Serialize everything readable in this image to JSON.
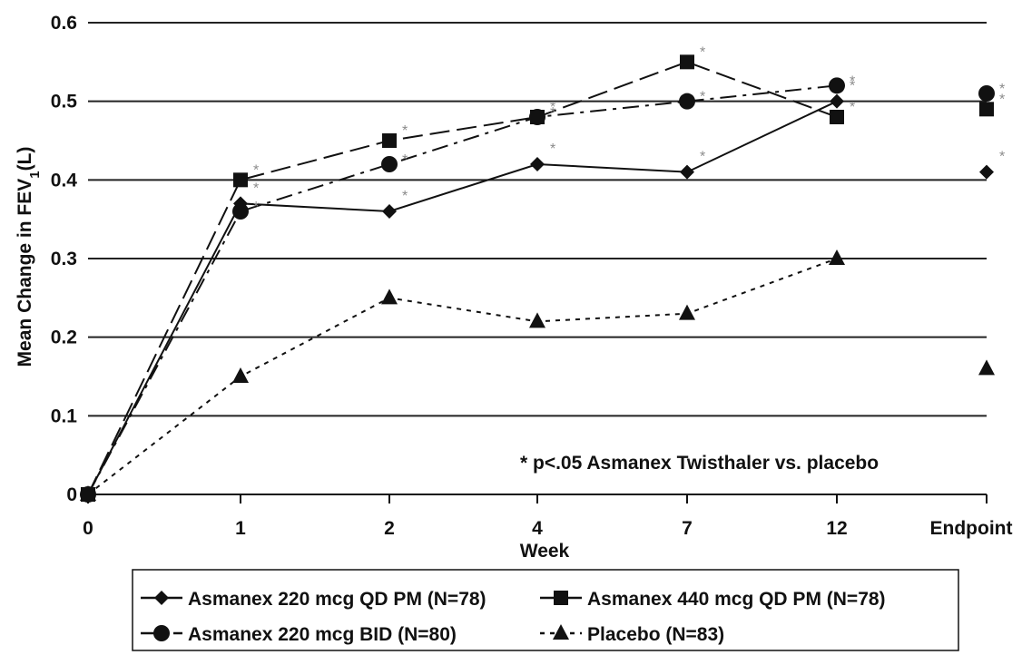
{
  "chart_data": {
    "type": "line",
    "categories": [
      "0",
      "1",
      "2",
      "4",
      "7",
      "12",
      "Endpoint"
    ],
    "xlabel": "Week",
    "ylabel_prefix": "Mean Change in FEV",
    "ylabel_sub": "1",
    "ylabel_suffix": "(L)",
    "ylim": [
      0,
      0.6
    ],
    "yticks": [
      "0",
      "0.1",
      "0.2",
      "0.3",
      "0.4",
      "0.5",
      "0.6"
    ],
    "grid": true,
    "legend_position": "bottom",
    "annotation": "* p<.05 Asmanex Twisthaler vs. placebo",
    "significance_marker": "*",
    "series": [
      {
        "name": "Asmanex 220 mcg QD PM (N=78)",
        "marker": "diamond",
        "dash": "solid",
        "values": [
          0,
          0.37,
          0.36,
          0.42,
          0.41,
          0.5,
          0.41
        ],
        "significant": [
          false,
          true,
          true,
          true,
          true,
          true,
          true
        ]
      },
      {
        "name": "Asmanex 440 mcg QD PM (N=78)",
        "marker": "square",
        "dash": "long-dash",
        "values": [
          0,
          0.4,
          0.45,
          0.48,
          0.55,
          0.48,
          0.49
        ],
        "significant": [
          false,
          true,
          true,
          true,
          true,
          true,
          true
        ]
      },
      {
        "name": "Asmanex 220 mcg BID (N=80)",
        "marker": "circle",
        "dash": "dash-dot",
        "values": [
          0,
          0.36,
          0.42,
          0.48,
          0.5,
          0.52,
          0.51
        ],
        "significant": [
          false,
          true,
          true,
          true,
          true,
          true,
          true
        ]
      },
      {
        "name": "Placebo (N=83)",
        "marker": "triangle",
        "dash": "dotted",
        "values": [
          0,
          0.15,
          0.25,
          0.22,
          0.23,
          0.3,
          0.16
        ],
        "significant": [
          false,
          false,
          false,
          false,
          false,
          false,
          false
        ]
      }
    ]
  }
}
